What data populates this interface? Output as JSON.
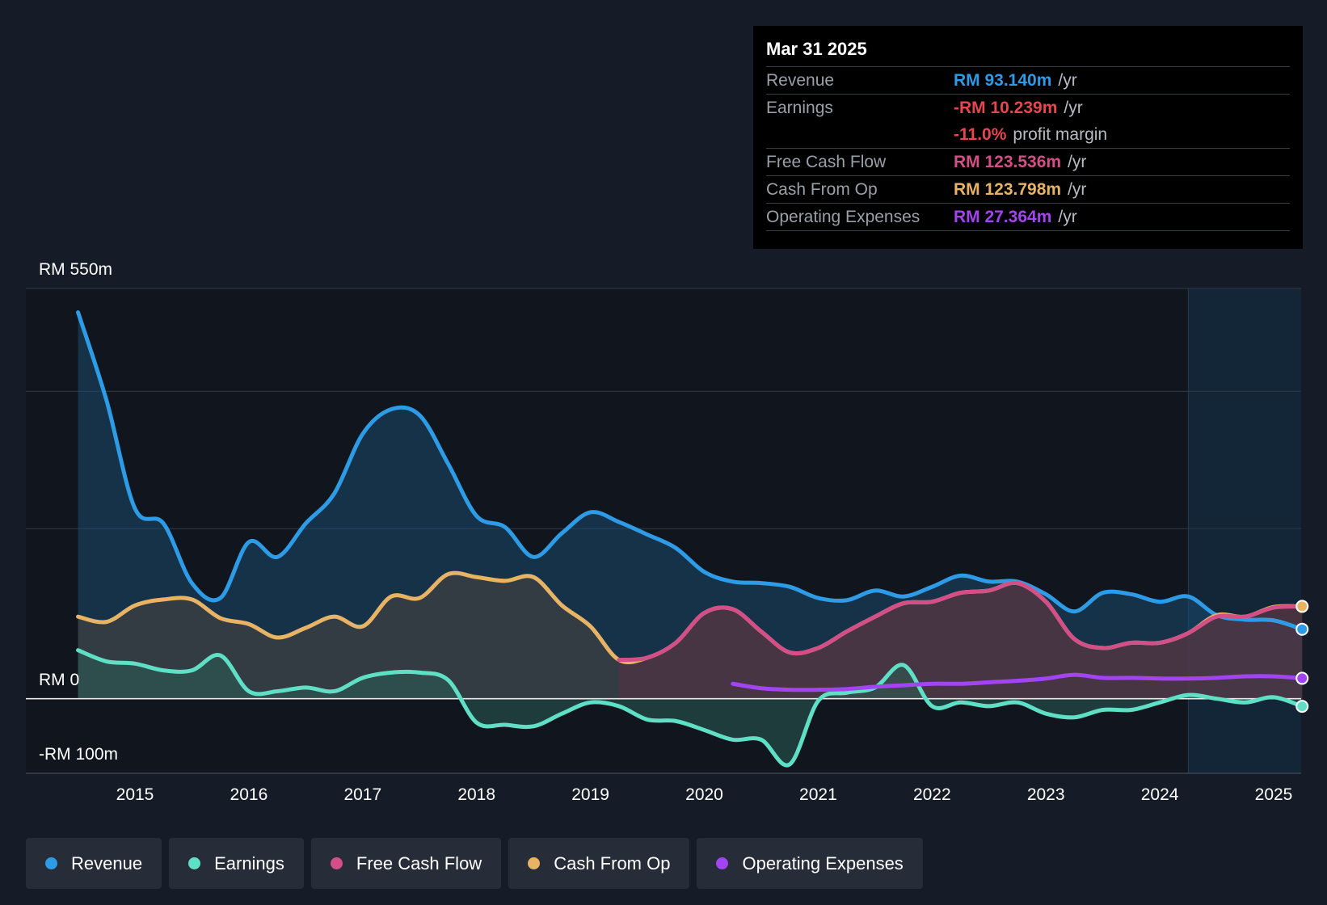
{
  "tooltip": {
    "date": "Mar 31 2025",
    "rows": [
      {
        "label": "Revenue",
        "value": "RM 93.140m",
        "unit": "/yr",
        "color": "#2d9be5"
      },
      {
        "label": "Earnings",
        "value": "-RM 10.239m",
        "unit": "/yr",
        "color": "#e5464f"
      },
      {
        "label": "",
        "value": "-11.0%",
        "unit": "profit margin",
        "color": "#e5464f"
      },
      {
        "label": "Free Cash Flow",
        "value": "RM 123.536m",
        "unit": "/yr",
        "color": "#d44f87"
      },
      {
        "label": "Cash From Op",
        "value": "RM 123.798m",
        "unit": "/yr",
        "color": "#e9b366"
      },
      {
        "label": "Operating Expenses",
        "value": "RM 27.364m",
        "unit": "/yr",
        "color": "#a245f0"
      }
    ]
  },
  "legend": [
    {
      "label": "Revenue",
      "color": "#2d9be5",
      "icon": "revenue-dot-icon"
    },
    {
      "label": "Earnings",
      "color": "#5fe0c6",
      "icon": "earnings-dot-icon"
    },
    {
      "label": "Free Cash Flow",
      "color": "#d44f87",
      "icon": "fcf-dot-icon"
    },
    {
      "label": "Cash From Op",
      "color": "#e9b366",
      "icon": "cfo-dot-icon"
    },
    {
      "label": "Operating Expenses",
      "color": "#a245f0",
      "icon": "opex-dot-icon"
    }
  ],
  "chart_data": {
    "type": "area",
    "title": "",
    "xlabel": "",
    "ylabel": "",
    "y_axis_labels": [
      "RM 550m",
      "RM 0",
      "-RM 100m"
    ],
    "ylim": [
      -100,
      550
    ],
    "xlim": [
      2014.5,
      2025.25
    ],
    "x_ticks": [
      2015,
      2016,
      2017,
      2018,
      2019,
      2020,
      2021,
      2022,
      2023,
      2024,
      2025
    ],
    "forecast_start": 2024.25,
    "series": [
      {
        "name": "Revenue",
        "color": "#2d9be5",
        "fill": "#1a4a6e",
        "points": [
          [
            2014.5,
            518
          ],
          [
            2014.75,
            400
          ],
          [
            2015.0,
            255
          ],
          [
            2015.25,
            235
          ],
          [
            2015.5,
            155
          ],
          [
            2015.75,
            135
          ],
          [
            2016.0,
            210
          ],
          [
            2016.25,
            190
          ],
          [
            2016.5,
            235
          ],
          [
            2016.75,
            275
          ],
          [
            2017.0,
            355
          ],
          [
            2017.25,
            388
          ],
          [
            2017.5,
            380
          ],
          [
            2017.75,
            315
          ],
          [
            2018.0,
            245
          ],
          [
            2018.25,
            230
          ],
          [
            2018.5,
            190
          ],
          [
            2018.75,
            222
          ],
          [
            2019.0,
            250
          ],
          [
            2019.25,
            237
          ],
          [
            2019.5,
            220
          ],
          [
            2019.75,
            202
          ],
          [
            2020.0,
            170
          ],
          [
            2020.25,
            157
          ],
          [
            2020.5,
            155
          ],
          [
            2020.75,
            150
          ],
          [
            2021.0,
            135
          ],
          [
            2021.25,
            132
          ],
          [
            2021.5,
            145
          ],
          [
            2021.75,
            137
          ],
          [
            2022.0,
            150
          ],
          [
            2022.25,
            165
          ],
          [
            2022.5,
            157
          ],
          [
            2022.75,
            157
          ],
          [
            2023.0,
            140
          ],
          [
            2023.25,
            117
          ],
          [
            2023.5,
            142
          ],
          [
            2023.75,
            140
          ],
          [
            2024.0,
            130
          ],
          [
            2024.25,
            137
          ],
          [
            2024.5,
            112
          ],
          [
            2024.75,
            106
          ],
          [
            2025.0,
            105
          ],
          [
            2025.25,
            93.14
          ]
        ]
      },
      {
        "name": "Earnings",
        "color": "#5fe0c6",
        "fill": "#2a5d55",
        "points": [
          [
            2014.5,
            65
          ],
          [
            2014.75,
            50
          ],
          [
            2015.0,
            47
          ],
          [
            2015.25,
            38
          ],
          [
            2015.5,
            38
          ],
          [
            2015.75,
            58
          ],
          [
            2016.0,
            10
          ],
          [
            2016.25,
            10
          ],
          [
            2016.5,
            15
          ],
          [
            2016.75,
            10
          ],
          [
            2017.0,
            28
          ],
          [
            2017.25,
            35
          ],
          [
            2017.5,
            35
          ],
          [
            2017.75,
            25
          ],
          [
            2018.0,
            -32
          ],
          [
            2018.25,
            -35
          ],
          [
            2018.5,
            -37
          ],
          [
            2018.75,
            -20
          ],
          [
            2019.0,
            -5
          ],
          [
            2019.25,
            -10
          ],
          [
            2019.5,
            -28
          ],
          [
            2019.75,
            -30
          ],
          [
            2020.0,
            -42
          ],
          [
            2020.25,
            -55
          ],
          [
            2020.5,
            -55
          ],
          [
            2020.75,
            -88
          ],
          [
            2021.0,
            -3
          ],
          [
            2021.25,
            8
          ],
          [
            2021.5,
            15
          ],
          [
            2021.75,
            45
          ],
          [
            2022.0,
            -10
          ],
          [
            2022.25,
            -5
          ],
          [
            2022.5,
            -10
          ],
          [
            2022.75,
            -5
          ],
          [
            2023.0,
            -20
          ],
          [
            2023.25,
            -25
          ],
          [
            2023.5,
            -15
          ],
          [
            2023.75,
            -15
          ],
          [
            2024.0,
            -5
          ],
          [
            2024.25,
            5
          ],
          [
            2024.5,
            0
          ],
          [
            2024.75,
            -5
          ],
          [
            2025.0,
            2
          ],
          [
            2025.25,
            -10.239
          ]
        ]
      },
      {
        "name": "Free Cash Flow",
        "color": "#d44f87",
        "fill": "#5a2f45",
        "points": [
          [
            2019.25,
            52
          ],
          [
            2019.5,
            55
          ],
          [
            2019.75,
            75
          ],
          [
            2020.0,
            115
          ],
          [
            2020.25,
            120
          ],
          [
            2020.5,
            90
          ],
          [
            2020.75,
            62
          ],
          [
            2021.0,
            68
          ],
          [
            2021.25,
            90
          ],
          [
            2021.5,
            110
          ],
          [
            2021.75,
            128
          ],
          [
            2022.0,
            130
          ],
          [
            2022.25,
            142
          ],
          [
            2022.5,
            145
          ],
          [
            2022.75,
            155
          ],
          [
            2023.0,
            130
          ],
          [
            2023.25,
            80
          ],
          [
            2023.5,
            68
          ],
          [
            2023.75,
            75
          ],
          [
            2024.0,
            75
          ],
          [
            2024.25,
            88
          ],
          [
            2024.5,
            110
          ],
          [
            2024.75,
            110
          ],
          [
            2025.0,
            122
          ],
          [
            2025.25,
            123.536
          ]
        ]
      },
      {
        "name": "Cash From Op",
        "color": "#e9b366",
        "fill": "#4a463c",
        "points": [
          [
            2014.5,
            110
          ],
          [
            2014.75,
            103
          ],
          [
            2015.0,
            125
          ],
          [
            2015.25,
            133
          ],
          [
            2015.5,
            133
          ],
          [
            2015.75,
            108
          ],
          [
            2016.0,
            100
          ],
          [
            2016.25,
            82
          ],
          [
            2016.5,
            95
          ],
          [
            2016.75,
            110
          ],
          [
            2017.0,
            97
          ],
          [
            2017.25,
            137
          ],
          [
            2017.5,
            135
          ],
          [
            2017.75,
            167
          ],
          [
            2018.0,
            163
          ],
          [
            2018.25,
            158
          ],
          [
            2018.5,
            163
          ],
          [
            2018.75,
            125
          ],
          [
            2019.0,
            97
          ],
          [
            2019.25,
            52
          ],
          [
            2019.5,
            55
          ],
          [
            2019.75,
            75
          ],
          [
            2020.0,
            115
          ],
          [
            2020.25,
            120
          ],
          [
            2020.5,
            90
          ],
          [
            2020.75,
            62
          ],
          [
            2021.0,
            68
          ],
          [
            2021.25,
            90
          ],
          [
            2021.5,
            110
          ],
          [
            2021.75,
            128
          ],
          [
            2022.0,
            130
          ],
          [
            2022.25,
            142
          ],
          [
            2022.5,
            145
          ],
          [
            2022.75,
            155
          ],
          [
            2023.0,
            130
          ],
          [
            2023.25,
            80
          ],
          [
            2023.5,
            68
          ],
          [
            2023.75,
            75
          ],
          [
            2024.0,
            75
          ],
          [
            2024.25,
            88
          ],
          [
            2024.5,
            112
          ],
          [
            2024.75,
            110
          ],
          [
            2025.0,
            123
          ],
          [
            2025.25,
            123.798
          ]
        ]
      },
      {
        "name": "Operating Expenses",
        "color": "#a245f0",
        "fill": "none",
        "points": [
          [
            2020.25,
            20
          ],
          [
            2020.5,
            14
          ],
          [
            2020.75,
            12
          ],
          [
            2021.0,
            12
          ],
          [
            2021.25,
            13
          ],
          [
            2021.5,
            16
          ],
          [
            2021.75,
            18
          ],
          [
            2022.0,
            20
          ],
          [
            2022.25,
            20
          ],
          [
            2022.5,
            22
          ],
          [
            2022.75,
            24
          ],
          [
            2023.0,
            27
          ],
          [
            2023.25,
            32
          ],
          [
            2023.5,
            28
          ],
          [
            2023.75,
            28
          ],
          [
            2024.0,
            27
          ],
          [
            2024.25,
            27
          ],
          [
            2024.5,
            28
          ],
          [
            2024.75,
            30
          ],
          [
            2025.0,
            30
          ],
          [
            2025.25,
            27.364
          ]
        ]
      }
    ]
  }
}
